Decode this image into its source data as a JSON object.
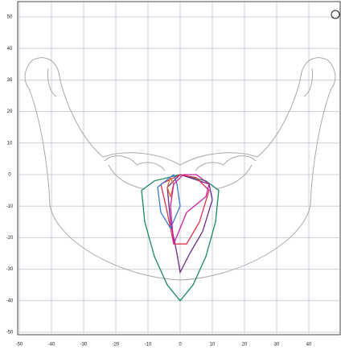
{
  "chart_data": {
    "type": "line",
    "xlim": [
      -50,
      50
    ],
    "ylim": [
      -50,
      50
    ],
    "xticks": [
      -50,
      -40,
      -30,
      -20,
      -10,
      0,
      10,
      20,
      30,
      40
    ],
    "yticks": [
      -50,
      -40,
      -30,
      -20,
      -10,
      0,
      10,
      20,
      30,
      40,
      50
    ],
    "grid": true,
    "series": [
      {
        "color": "#1a8a5a",
        "x": [
          -12,
          -11,
          -8,
          -4,
          0,
          4,
          8,
          11,
          12,
          8,
          0,
          -8,
          -12
        ],
        "values": [
          -5,
          -15,
          -26,
          -35,
          -40,
          -35,
          -26,
          -15,
          -5,
          -2,
          0,
          -2,
          -5
        ]
      },
      {
        "color": "#6a2a8a",
        "x": [
          0,
          -4,
          -3,
          -1,
          0,
          3,
          7,
          10,
          9,
          3,
          0
        ],
        "values": [
          0,
          -4,
          -15,
          -25,
          -31,
          -25,
          -18,
          -8,
          -3,
          -1,
          0
        ]
      },
      {
        "color": "#e0304a",
        "x": [
          -6,
          -4,
          -2,
          2,
          6,
          9,
          5,
          0,
          -6
        ],
        "values": [
          -3,
          -12,
          -22,
          -22,
          -15,
          -5,
          -1,
          0,
          -3
        ]
      },
      {
        "color": "#3a7ad0",
        "x": [
          -2,
          -7,
          -6,
          -3,
          0,
          -1,
          -2
        ],
        "values": [
          0,
          -4,
          -12,
          -17,
          -10,
          -3,
          0
        ]
      },
      {
        "color": "#e07020",
        "x": [
          -3,
          -4,
          -3,
          -2,
          -3
        ],
        "values": [
          -1,
          -4,
          -7,
          -3,
          -1
        ]
      },
      {
        "color": "#d020a0",
        "x": [
          1,
          -2,
          -3,
          -2,
          2,
          8,
          9,
          5,
          1
        ],
        "values": [
          0,
          -3,
          -10,
          -22,
          -12,
          -7,
          -3,
          0,
          0
        ]
      }
    ]
  }
}
